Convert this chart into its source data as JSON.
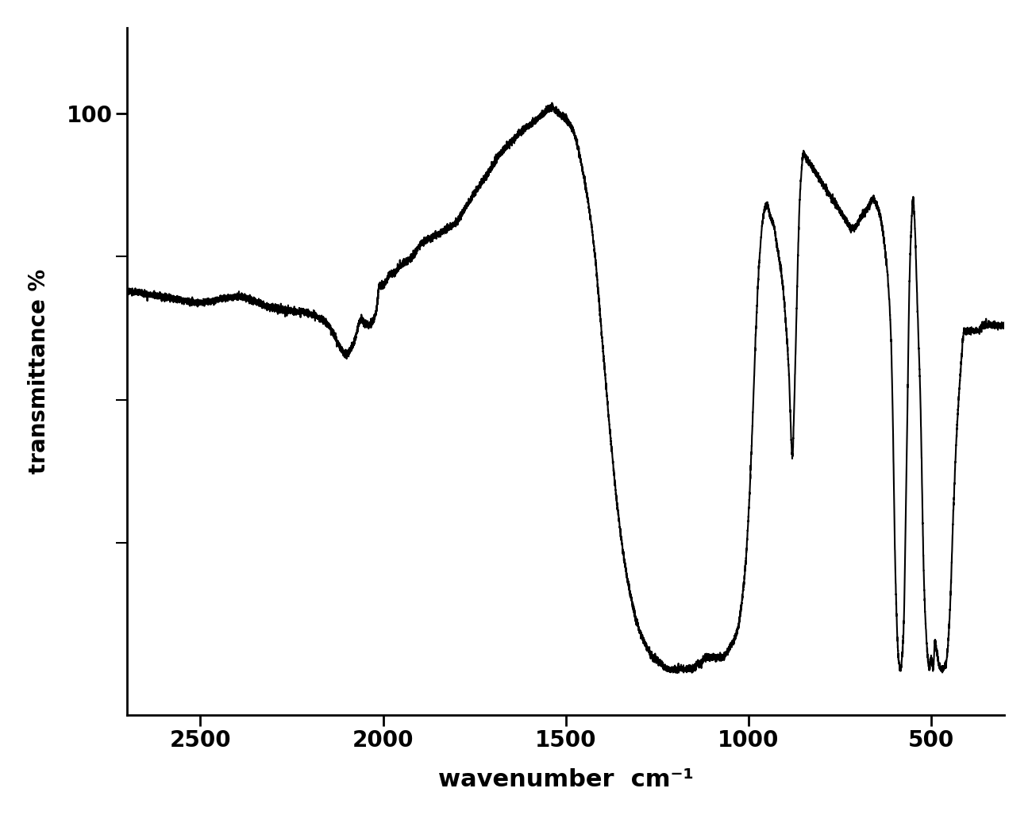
{
  "title": "",
  "xlabel": "wavenumber  cm⁻¹",
  "ylabel": "transmittance %",
  "xlim": [
    2700,
    300
  ],
  "ylim": [
    -5,
    115
  ],
  "xticks": [
    2500,
    2000,
    1500,
    1000,
    500
  ],
  "ytick_val": 100,
  "ytick_label": "100",
  "background_color": "#ffffff",
  "line_color": "#000000",
  "line_width": 1.5,
  "figsize": [
    13.0,
    10.32
  ],
  "dpi": 100,
  "minor_yticks": [
    25,
    50,
    75
  ]
}
